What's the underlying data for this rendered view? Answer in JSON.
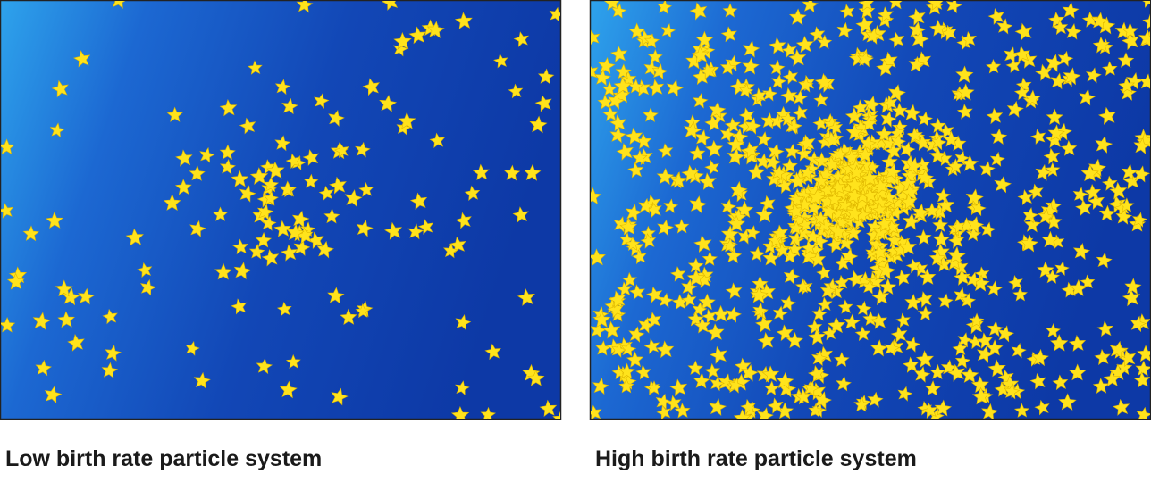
{
  "panels": [
    {
      "caption": "Low birth rate particle system"
    },
    {
      "caption": "High birth rate particle system"
    }
  ]
}
